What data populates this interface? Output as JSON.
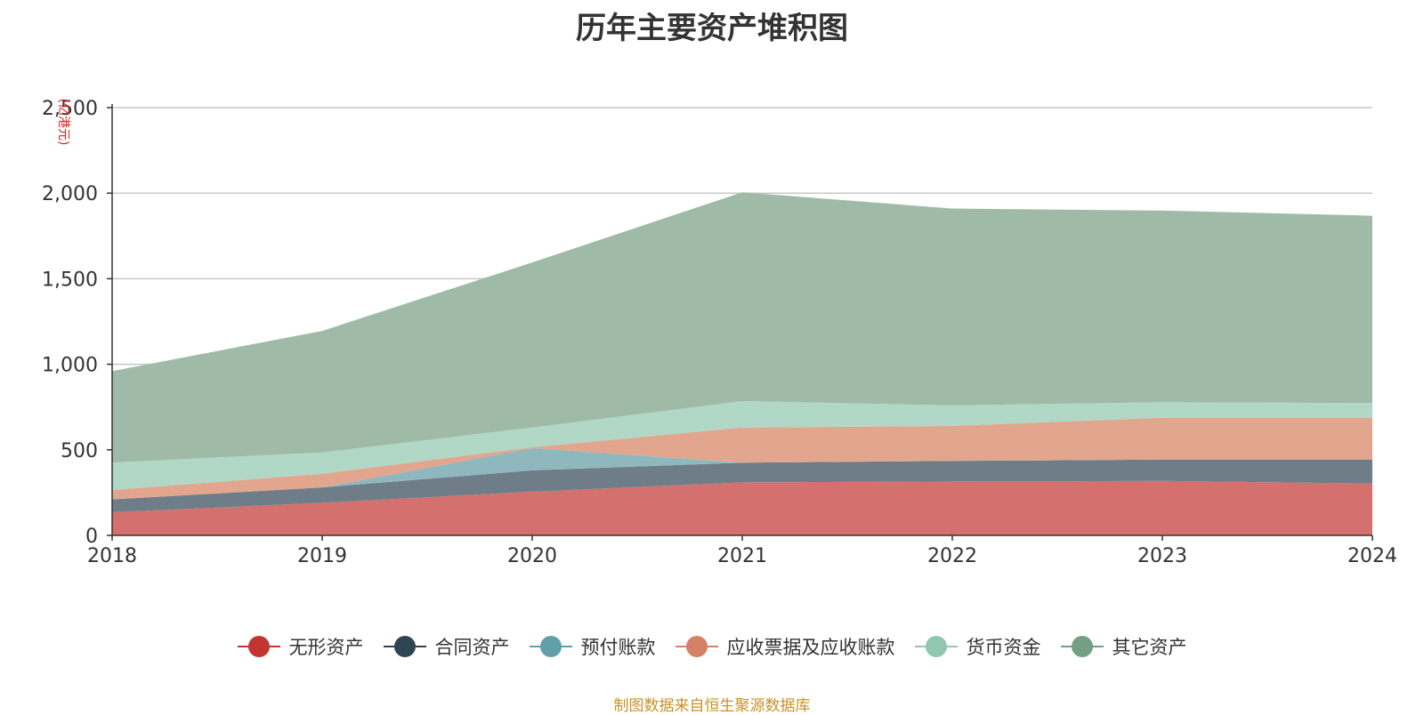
{
  "chart_data": {
    "type": "area",
    "stacked": true,
    "title": "历年主要资产堆积图",
    "ylabel": "(亿港元)",
    "xlabel": "",
    "categories": [
      "2018",
      "2019",
      "2020",
      "2021",
      "2022",
      "2023",
      "2024"
    ],
    "ylim": [
      0,
      2500
    ],
    "yticks": [
      0,
      500,
      1000,
      1500,
      2000,
      2500
    ],
    "ytick_labels": [
      "0",
      "500",
      "1,000",
      "1,500",
      "2,000",
      "2,500"
    ],
    "grid": true,
    "legend_position": "bottom",
    "series": [
      {
        "name": "无形资产",
        "values": [
          135,
          190,
          255,
          310,
          315,
          318,
          303
        ],
        "color": "#c23531",
        "fill": "#d4706e"
      },
      {
        "name": "合同资产",
        "values": [
          75,
          90,
          125,
          115,
          120,
          125,
          140
        ],
        "color": "#2f4554",
        "fill": "#6e7d88"
      },
      {
        "name": "预付账款",
        "values": [
          0,
          0,
          130,
          0,
          0,
          0,
          0
        ],
        "color": "#61a0a8",
        "fill": "#8fb8be"
      },
      {
        "name": "应收票据及应收账款",
        "values": [
          55,
          80,
          5,
          205,
          205,
          245,
          245
        ],
        "color": "#d48265",
        "fill": "#e2a68f"
      },
      {
        "name": "货币资金",
        "values": [
          160,
          125,
          115,
          155,
          120,
          90,
          85
        ],
        "color": "#91c7ae",
        "fill": "#b1d8c6"
      },
      {
        "name": "其它资产",
        "values": [
          535,
          710,
          965,
          1220,
          1150,
          1120,
          1095
        ],
        "color": "#749f83",
        "fill": "#9fbba8"
      }
    ]
  },
  "source_note": "制图数据来自恒生聚源数据库"
}
